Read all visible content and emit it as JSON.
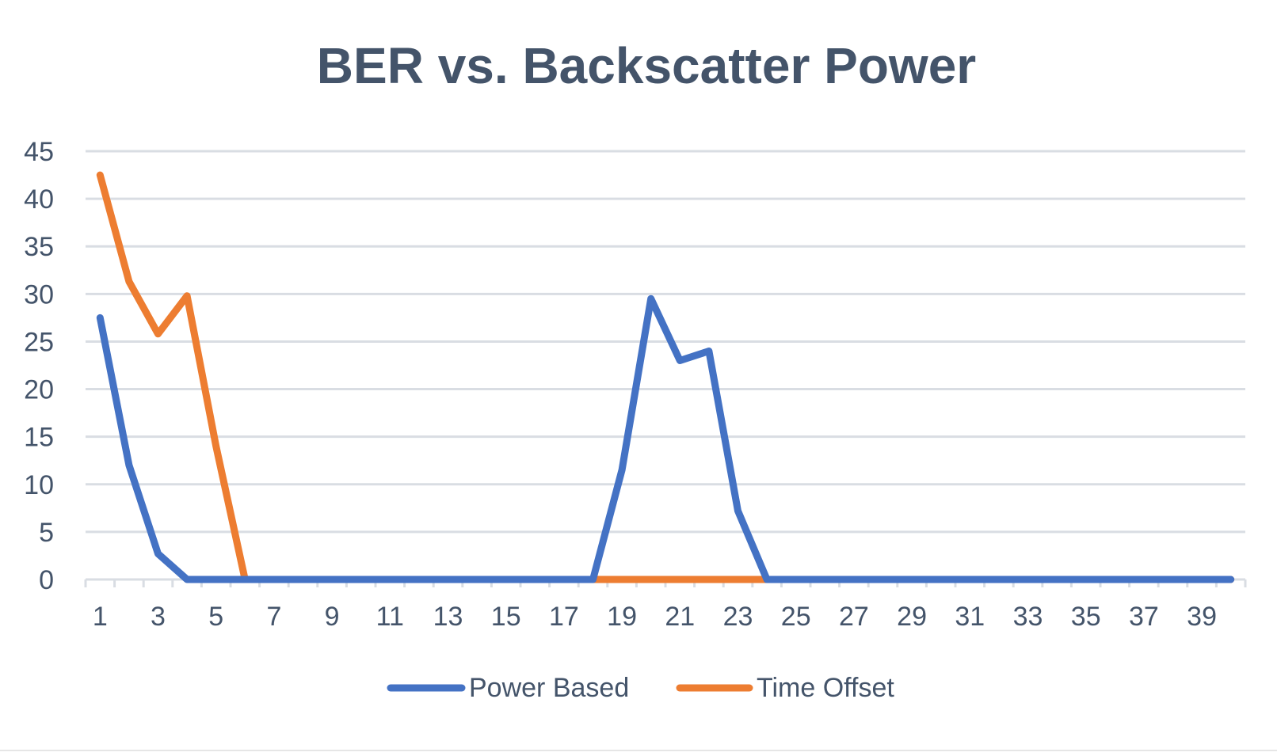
{
  "chart_data": {
    "type": "line",
    "title": "BER vs. Backscatter Power",
    "xlabel": "",
    "ylabel": "",
    "x": [
      1,
      2,
      3,
      4,
      5,
      6,
      7,
      8,
      9,
      10,
      11,
      12,
      13,
      14,
      15,
      16,
      17,
      18,
      19,
      20,
      21,
      22,
      23,
      24,
      25,
      26,
      27,
      28,
      29,
      30,
      31,
      32,
      33,
      34,
      35,
      36,
      37,
      38,
      39,
      40
    ],
    "x_tick_labels": [
      "1",
      "3",
      "5",
      "7",
      "9",
      "11",
      "13",
      "15",
      "17",
      "19",
      "21",
      "23",
      "25",
      "27",
      "29",
      "31",
      "33",
      "35",
      "37",
      "39"
    ],
    "ylim": [
      0,
      45
    ],
    "y_ticks": [
      0,
      5,
      10,
      15,
      20,
      25,
      30,
      35,
      40,
      45
    ],
    "grid": true,
    "legend_position": "bottom",
    "series": [
      {
        "name": "Power Based",
        "color": "#4472c4",
        "values": [
          27.5,
          12,
          2.7,
          0,
          0,
          0,
          0,
          0,
          0,
          0,
          0,
          0,
          0,
          0,
          0,
          0,
          0,
          0,
          11.5,
          29.5,
          23,
          24,
          7.2,
          0,
          0,
          0,
          0,
          0,
          0,
          0,
          0,
          0,
          0,
          0,
          0,
          0,
          0,
          0,
          0,
          0
        ]
      },
      {
        "name": "Time Offset",
        "color": "#ed7d31",
        "values": [
          42.5,
          31.3,
          25.8,
          29.8,
          14,
          0,
          0,
          0,
          0,
          0,
          0,
          0,
          0,
          0,
          0,
          0,
          0,
          0,
          0,
          0,
          0,
          0,
          0,
          0,
          0,
          0,
          0,
          0,
          0,
          0,
          0,
          0,
          0,
          0,
          0,
          0,
          0,
          0,
          0,
          0
        ]
      }
    ]
  }
}
